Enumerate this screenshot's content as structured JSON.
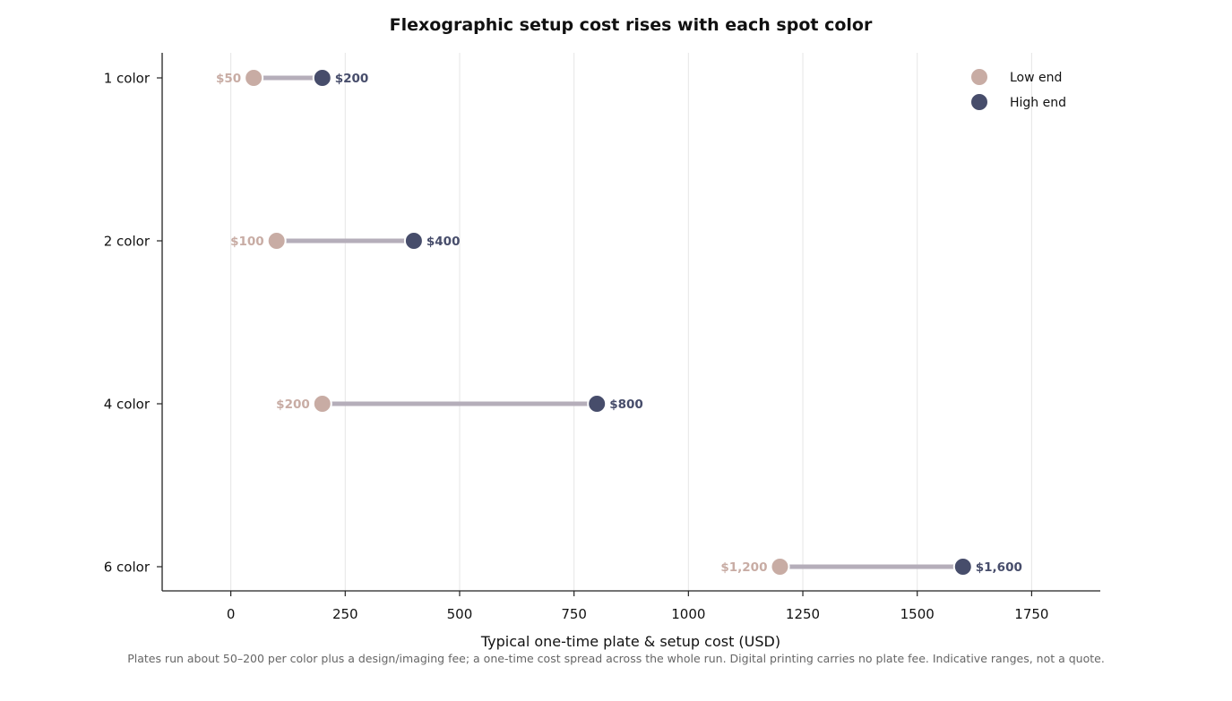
{
  "chart_data": {
    "type": "dumbbell",
    "title": "Flexographic setup cost rises with each spot color",
    "xlabel": "Typical one-time plate & setup cost (USD)",
    "ylabel": "",
    "xlim": [
      -150,
      1900
    ],
    "x_ticks": [
      0,
      250,
      500,
      750,
      1000,
      1250,
      1500,
      1750
    ],
    "x_tick_labels": [
      "0",
      "250",
      "500",
      "750",
      "1000",
      "1250",
      "1500",
      "1750"
    ],
    "categories": [
      "1 color",
      "2 color",
      "4 color",
      "6 color"
    ],
    "series": [
      {
        "name": "Low end",
        "color": "#c8aca4",
        "values": [
          50,
          100,
          200,
          1200
        ],
        "labels": [
          "$50",
          "$100",
          "$200",
          "$1,200"
        ]
      },
      {
        "name": "High end",
        "color": "#474d6b",
        "values": [
          200,
          400,
          800,
          1600
        ],
        "labels": [
          "$200",
          "$400",
          "$800",
          "$1,600"
        ]
      }
    ],
    "connector_color": "#b5aeba",
    "grid": "vertical",
    "legend_position": "top-right",
    "footnote": "Plates run about 50–200 per color plus a design/imaging fee; a one-time cost spread across the whole run. Digital printing carries no plate fee. Indicative ranges, not a quote."
  }
}
